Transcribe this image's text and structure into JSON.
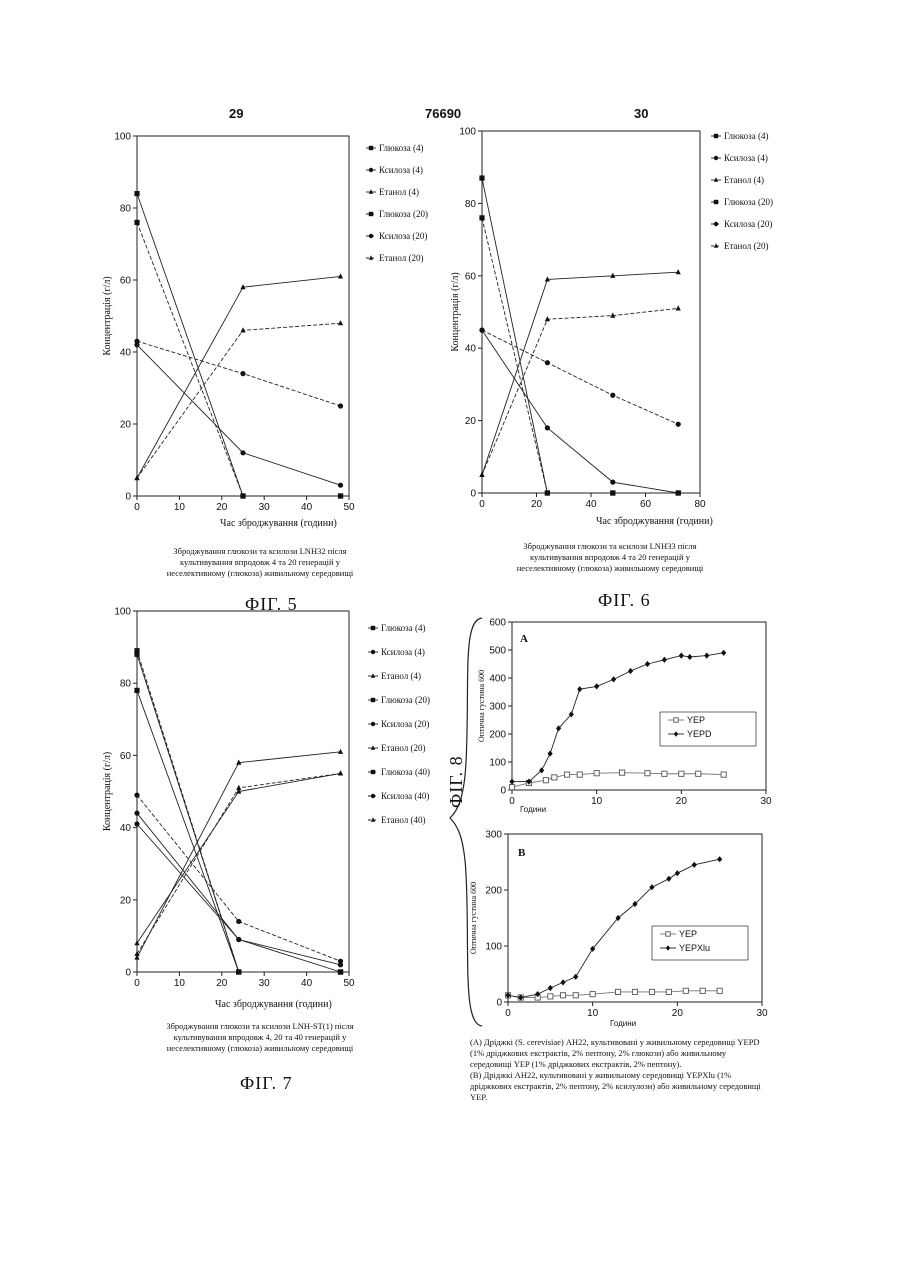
{
  "page": {
    "left_num": "29",
    "center_num": "76690",
    "right_num": "30"
  },
  "fig5": {
    "caption": [
      "Зброджування глюкози та ксилози LNH32 після",
      "культивування впродовж 4 та 20 генерацій у",
      "неселективному (глюкоза) живильному середовищі"
    ],
    "label": "ФІГ. 5"
  },
  "fig6": {
    "caption": [
      "Зброджування глюкози та ксилози LNH33 після",
      "культивування впродовж 4 та 20 генерацій у",
      "неселективному (глюкоза) живильному середовищі"
    ],
    "label": "ФІГ. 6"
  },
  "fig7": {
    "caption": [
      "Зброджування глюкози та ксилози LNH-ST(1) після",
      "культивування впродовж 4, 20 та 40 генерацій у",
      "неселективному (глюкоза) живильному середовищі"
    ],
    "label": "ФІГ. 7"
  },
  "fig8": {
    "label": "ФІГ. 8",
    "caption": [
      "(А) Дріджкі (S. cerevisiae) AH22, культивовані у живильному середовищі YEPD",
      "(1% дріджкових екстрактів, 2% пептону, 2% глюкози) або живильному",
      "середовищі YEP (1% дріджкових екстрактів, 2% пептону).",
      "(В) Дріджкі AH22, культивовані у живильному середовищі YEPXlu (1%",
      "дріджкових екстрактів, 2% пептону, 2% ксилулози) або живильному середовищі",
      "YEP."
    ]
  },
  "chart_data": [
    {
      "id": "fig5",
      "type": "line",
      "xlabel": "Час зброджування (години)",
      "ylabel": "Концентрація (г/л)",
      "xlim": [
        0,
        50
      ],
      "ylim": [
        0,
        100
      ],
      "xticks": [
        0,
        10,
        20,
        30,
        40,
        50
      ],
      "yticks": [
        0,
        20,
        40,
        60,
        80,
        100
      ],
      "series": [
        {
          "name": "Глюкоза (4)",
          "marker": "square",
          "dash": false,
          "x": [
            0,
            25,
            48
          ],
          "y": [
            84,
            0,
            0
          ]
        },
        {
          "name": "Ксилоза (4)",
          "marker": "circle",
          "dash": false,
          "x": [
            0,
            25,
            48
          ],
          "y": [
            42,
            12,
            3
          ]
        },
        {
          "name": "Етанол (4)",
          "marker": "triangle",
          "dash": false,
          "x": [
            0,
            25,
            48
          ],
          "y": [
            5,
            58,
            61
          ]
        },
        {
          "name": "Глюкоза (20)",
          "marker": "square",
          "dash": true,
          "x": [
            0,
            25,
            48
          ],
          "y": [
            76,
            0,
            0
          ]
        },
        {
          "name": "Ксилоза (20)",
          "marker": "circle",
          "dash": true,
          "x": [
            0,
            25,
            48
          ],
          "y": [
            43,
            34,
            25
          ]
        },
        {
          "name": "Етанол (20)",
          "marker": "triangle",
          "dash": true,
          "x": [
            0,
            25,
            48
          ],
          "y": [
            5,
            46,
            48
          ]
        }
      ]
    },
    {
      "id": "fig6",
      "type": "line",
      "xlabel": "Час зброджування (години)",
      "ylabel": "Концентрація (г/л)",
      "xlim": [
        0,
        80
      ],
      "ylim": [
        0,
        100
      ],
      "xticks": [
        0,
        20,
        40,
        60,
        80
      ],
      "yticks": [
        0,
        20,
        40,
        60,
        80,
        100
      ],
      "series": [
        {
          "name": "Глюкоза (4)",
          "marker": "square",
          "dash": false,
          "x": [
            0,
            24,
            48,
            72
          ],
          "y": [
            87,
            0,
            0,
            0
          ]
        },
        {
          "name": "Ксилоза (4)",
          "marker": "circle",
          "dash": false,
          "x": [
            0,
            24,
            48,
            72
          ],
          "y": [
            45,
            18,
            3,
            0
          ]
        },
        {
          "name": "Етанол (4)",
          "marker": "triangle",
          "dash": false,
          "x": [
            0,
            24,
            48,
            72
          ],
          "y": [
            5,
            59,
            60,
            61
          ]
        },
        {
          "name": "Глюкоза (20)",
          "marker": "square",
          "dash": true,
          "x": [
            0,
            24,
            48,
            72
          ],
          "y": [
            76,
            0,
            0,
            0
          ]
        },
        {
          "name": "Ксилоза (20)",
          "marker": "circle",
          "dash": true,
          "x": [
            0,
            24,
            48,
            72
          ],
          "y": [
            45,
            36,
            27,
            19
          ]
        },
        {
          "name": "Етанол (20)",
          "marker": "triangle",
          "dash": true,
          "x": [
            0,
            24,
            48,
            72
          ],
          "y": [
            5,
            48,
            49,
            51
          ]
        }
      ]
    },
    {
      "id": "fig7",
      "type": "line",
      "xlabel": "Час зброджування (години)",
      "ylabel": "Концентрація (г/л)",
      "xlim": [
        0,
        50
      ],
      "ylim": [
        0,
        100
      ],
      "xticks": [
        0,
        10,
        20,
        30,
        40,
        50
      ],
      "yticks": [
        0,
        20,
        40,
        60,
        80,
        100
      ],
      "series": [
        {
          "name": "Глюкоза (4)",
          "marker": "square",
          "dash": false,
          "x": [
            0,
            24,
            48
          ],
          "y": [
            78,
            0,
            0
          ]
        },
        {
          "name": "Ксилоза (4)",
          "marker": "circle",
          "dash": false,
          "x": [
            0,
            24,
            48
          ],
          "y": [
            44,
            9,
            0
          ]
        },
        {
          "name": "Етанол (4)",
          "marker": "triangle",
          "dash": false,
          "x": [
            0,
            24,
            48
          ],
          "y": [
            4,
            58,
            61
          ]
        },
        {
          "name": "Глюкоза (20)",
          "marker": "square",
          "dash": false,
          "x": [
            0,
            24,
            48
          ],
          "y": [
            88,
            0,
            0
          ]
        },
        {
          "name": "Ксилоза (20)",
          "marker": "circle",
          "dash": false,
          "x": [
            0,
            24,
            48
          ],
          "y": [
            41,
            9,
            2
          ]
        },
        {
          "name": "Етанол (20)",
          "marker": "triangle",
          "dash": false,
          "x": [
            0,
            24,
            48
          ],
          "y": [
            8,
            50,
            55
          ]
        },
        {
          "name": "Глюкоза (40)",
          "marker": "square",
          "dash": true,
          "x": [
            0,
            24,
            48
          ],
          "y": [
            89,
            0,
            0
          ]
        },
        {
          "name": "Ксилоза (40)",
          "marker": "circle",
          "dash": true,
          "x": [
            0,
            24,
            48
          ],
          "y": [
            49,
            14,
            3
          ]
        },
        {
          "name": "Етанол (40)",
          "marker": "triangle",
          "dash": true,
          "x": [
            0,
            24,
            48
          ],
          "y": [
            5,
            51,
            55
          ]
        }
      ]
    },
    {
      "id": "fig8a",
      "type": "line",
      "panel": "A",
      "xlabel": "Години",
      "ylabel": "Оптична густина 600",
      "xlim": [
        0,
        30
      ],
      "ylim": [
        0,
        600
      ],
      "xticks": [
        0,
        10,
        20,
        30
      ],
      "yticks": [
        0,
        100,
        200,
        300,
        400,
        500,
        600
      ],
      "series": [
        {
          "name": "YEP",
          "marker": "open-square",
          "dash": false,
          "x": [
            0,
            2,
            4,
            5,
            6.5,
            8,
            10,
            13,
            16,
            18,
            20,
            22,
            25
          ],
          "y": [
            10,
            25,
            35,
            45,
            55,
            55,
            60,
            62,
            60,
            58,
            58,
            58,
            55
          ]
        },
        {
          "name": "YEPD",
          "marker": "diamond",
          "dash": false,
          "x": [
            0,
            2,
            3.5,
            4.5,
            5.5,
            7,
            8,
            10,
            12,
            14,
            16,
            18,
            20,
            21,
            23,
            25
          ],
          "y": [
            30,
            30,
            70,
            130,
            220,
            270,
            360,
            370,
            395,
            425,
            450,
            465,
            480,
            475,
            480,
            490
          ]
        }
      ]
    },
    {
      "id": "fig8b",
      "type": "line",
      "panel": "B",
      "xlabel": "Години",
      "ylabel": "Оптична густина 600",
      "xlim": [
        0,
        30
      ],
      "ylim": [
        0,
        300
      ],
      "xticks": [
        0,
        10,
        20,
        30
      ],
      "yticks": [
        0,
        100,
        200,
        300
      ],
      "series": [
        {
          "name": "YEP",
          "marker": "open-square",
          "dash": false,
          "x": [
            0,
            1.5,
            3.5,
            5,
            6.5,
            8,
            10,
            13,
            15,
            17,
            19,
            21,
            23,
            25
          ],
          "y": [
            12,
            8,
            8,
            10,
            12,
            12,
            14,
            18,
            18,
            18,
            18,
            20,
            20,
            20
          ]
        },
        {
          "name": "YEPXlu",
          "marker": "diamond",
          "dash": false,
          "x": [
            0,
            1.5,
            3.5,
            5,
            6.5,
            8,
            10,
            13,
            15,
            17,
            19,
            20,
            22,
            25
          ],
          "y": [
            12,
            8,
            14,
            25,
            35,
            45,
            95,
            150,
            175,
            205,
            220,
            230,
            245,
            255
          ]
        }
      ]
    }
  ]
}
